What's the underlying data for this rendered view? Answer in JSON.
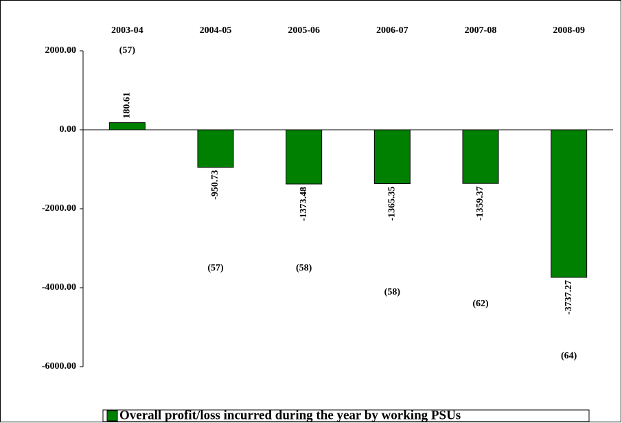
{
  "chart_data": {
    "type": "bar",
    "categories": [
      "2003-04",
      "2004-05",
      "2005-06",
      "2006-07",
      "2007-08",
      "2008-09"
    ],
    "series": [
      {
        "name": "Overall profit/loss incurred during the year by working PSUs",
        "color": "#008000",
        "values": [
          180.61,
          -950.73,
          -1373.48,
          -1365.35,
          -1359.37,
          -3737.27
        ]
      }
    ],
    "annotations": [
      "(57)",
      "(57)",
      "(58)",
      "(58)",
      "(62)",
      "(64)"
    ],
    "ylim": [
      -6000,
      2000
    ],
    "yticks": [
      {
        "value": -6000,
        "label": "-6000.00"
      },
      {
        "value": -4000,
        "label": "-4000.00"
      },
      {
        "value": -2000,
        "label": "-2000.00"
      },
      {
        "value": 0,
        "label": "0.00"
      },
      {
        "value": 2000,
        "label": "2000.00"
      }
    ],
    "legend": "bottom"
  }
}
